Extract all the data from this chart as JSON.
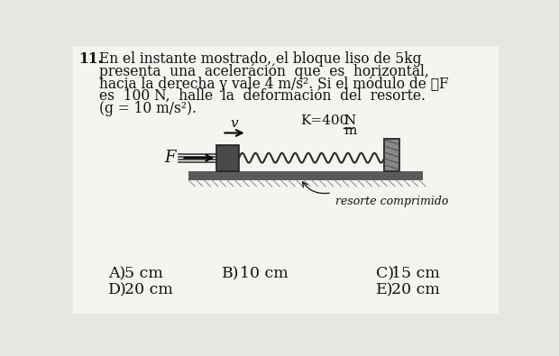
{
  "bg_color": "#e8e6e0",
  "page_color": "#f5f4f0",
  "title_number": "11.",
  "problem_text_lines": [
    "En el instante mostrado, el bloque liso de 5kg",
    "presenta  una  aceleráción  que  es  horizontal,",
    "hacia la derecha y vale 4 m/s². Si el módulo de ⃗F",
    "es  100 N,  halle  la  deformación  del  resorte.",
    "(g = 10 m/s²)."
  ],
  "diagram": {
    "v_label": "v",
    "K_label": "K=400",
    "K_unit_top": "N",
    "K_unit_bot": "m",
    "F_label": "F",
    "resorte_label": "resorte comprimido",
    "spring_color": "#2a2a2a",
    "block_color": "#4a4a4a",
    "track_color": "#5a5a5a",
    "wall_color": "#5a5a5a",
    "arrow_color": "#000000",
    "force_line_color": "#2a2a2a",
    "hatch_color": "#888888"
  },
  "answers": [
    {
      "letter": "A)",
      "text": "5 cm"
    },
    {
      "letter": "B)",
      "text": "10 cm"
    },
    {
      "letter": "C)",
      "text": "15 cm"
    },
    {
      "letter": "D)",
      "text": "20 cm"
    },
    {
      "letter": "E)",
      "text": "20 cm"
    }
  ],
  "text_color": "#111111",
  "font_size_problem": 11.2,
  "font_size_answers": 12.5
}
